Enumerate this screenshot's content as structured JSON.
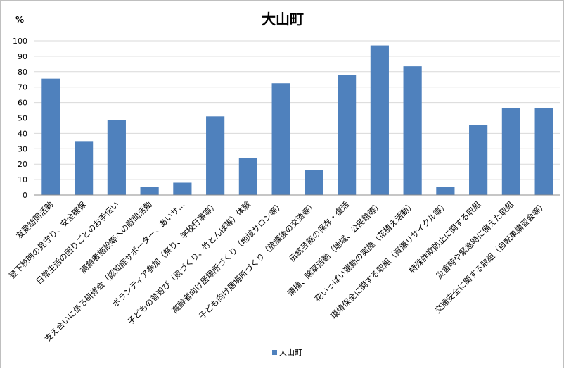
{
  "chart_data": {
    "type": "bar",
    "title": "大山町",
    "ylabel": "%",
    "xlabel": "",
    "ylim": [
      0,
      100
    ],
    "yticks": [
      0,
      10,
      20,
      30,
      40,
      50,
      60,
      70,
      80,
      90,
      100
    ],
    "grid": true,
    "legend_position": "bottom",
    "categories": [
      "友愛訪問活動",
      "登下校時の見守り、安全確保",
      "日常生活の困りごとのお手伝い",
      "高齢者施設等への慰問活動",
      "支え合いに係る研修会（認知症サポーター、あいサ…",
      "ボランティア参加（祭り、学校行事等）",
      "子どもの昔遊び（凧づくり、竹とんぼ等）体験",
      "高齢者向け居場所づくり（地域サロン等）",
      "子ども向け居場所づくり（放課後の交流等）",
      "伝統芸能の保存・復活",
      "清掃、除草活動（地域、公民館等）",
      "花いっぱい運動の実施（花植え活動）",
      "環境保全に関する取組（資源リサイクル等）",
      "特殊詐欺防止に関する取組",
      "災害時や緊急時に備えた取組",
      "交通安全に関する取組（自転車講習会等）"
    ],
    "series": [
      {
        "name": "大山町",
        "color": "#4f81bd",
        "values": [
          75.5,
          35,
          48.5,
          5.3,
          8,
          51,
          24,
          72.5,
          16,
          78,
          97,
          83.5,
          5.3,
          45.5,
          56.5,
          56.5
        ]
      }
    ]
  }
}
